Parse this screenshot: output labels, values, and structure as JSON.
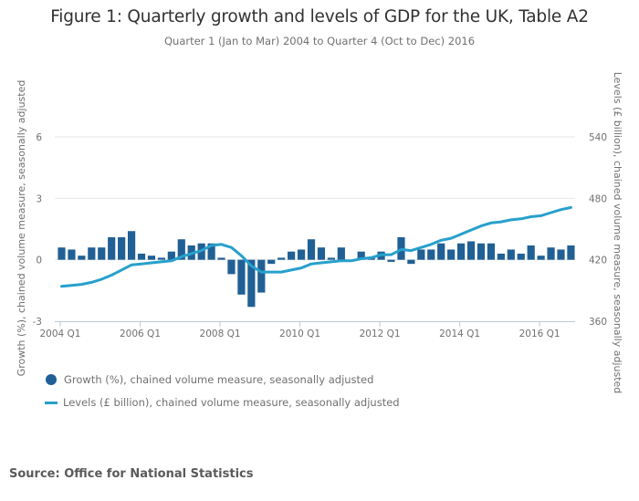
{
  "title": "Figure 1: Quarterly growth and levels of GDP for the UK, Table A2",
  "subtitle": "Quarter 1 (Jan to Mar) 2004 to Quarter 4 (Oct to Dec) 2016",
  "source": "Source: Office for National Statistics",
  "colors": {
    "bars": "#206095",
    "line": "#27a0cc",
    "grid": "#e5e6e7",
    "axis": "#bcc8d9"
  },
  "chart_data": {
    "type": "bar",
    "title": "Figure 1: Quarterly growth and levels of GDP for the UK, Table A2",
    "subtitle": "Quarter 1 (Jan to Mar) 2004 to Quarter 4 (Oct to Dec) 2016",
    "xlabel": "",
    "ylabel": "Growth (%), chained volume measure, seasonally adjusted",
    "y2label": "Levels (£ billion), chained volume measure, seasonally adjusted",
    "ylim": [
      -3,
      6
    ],
    "y2lim": [
      360,
      540
    ],
    "yticks": [
      "-3",
      "0",
      "3",
      "6"
    ],
    "y2ticks": [
      "360",
      "420",
      "480",
      "540"
    ],
    "xticks": [
      "2004 Q1",
      "2006 Q1",
      "2008 Q1",
      "2010 Q1",
      "2012 Q1",
      "2014 Q1",
      "2016 Q1"
    ],
    "grid": true,
    "legend_position": "bottom-left",
    "x": [
      "2004 Q1",
      "2004 Q2",
      "2004 Q3",
      "2004 Q4",
      "2005 Q1",
      "2005 Q2",
      "2005 Q3",
      "2005 Q4",
      "2006 Q1",
      "2006 Q2",
      "2006 Q3",
      "2006 Q4",
      "2007 Q1",
      "2007 Q2",
      "2007 Q3",
      "2007 Q4",
      "2008 Q1",
      "2008 Q2",
      "2008 Q3",
      "2008 Q4",
      "2009 Q1",
      "2009 Q2",
      "2009 Q3",
      "2009 Q4",
      "2010 Q1",
      "2010 Q2",
      "2010 Q3",
      "2010 Q4",
      "2011 Q1",
      "2011 Q2",
      "2011 Q3",
      "2011 Q4",
      "2012 Q1",
      "2012 Q2",
      "2012 Q3",
      "2012 Q4",
      "2013 Q1",
      "2013 Q2",
      "2013 Q3",
      "2013 Q4",
      "2014 Q1",
      "2014 Q2",
      "2014 Q3",
      "2014 Q4",
      "2015 Q1",
      "2015 Q2",
      "2015 Q3",
      "2015 Q4",
      "2016 Q1",
      "2016 Q2",
      "2016 Q3",
      "2016 Q4"
    ],
    "series": [
      {
        "name": "Growth (%), chained volume measure, seasonally adjusted",
        "type": "bar",
        "axis": "left",
        "values": [
          0.6,
          0.5,
          0.2,
          0.6,
          0.6,
          1.1,
          1.1,
          1.4,
          0.3,
          0.2,
          0.1,
          0.4,
          1.0,
          0.7,
          0.8,
          0.8,
          0.1,
          -0.7,
          -1.7,
          -2.3,
          -1.6,
          -0.2,
          0.1,
          0.4,
          0.5,
          1.0,
          0.6,
          0.1,
          0.6,
          0.0,
          0.4,
          0.1,
          0.4,
          -0.1,
          1.1,
          -0.2,
          0.5,
          0.5,
          0.8,
          0.5,
          0.8,
          0.9,
          0.8,
          0.8,
          0.3,
          0.5,
          0.3,
          0.7,
          0.2,
          0.6,
          0.5,
          0.7
        ]
      },
      {
        "name": "Levels (£ billion), chained volume measure, seasonally adjusted",
        "type": "line",
        "axis": "right",
        "values": [
          394,
          395,
          396,
          398,
          401,
          405,
          410,
          415,
          416,
          417,
          418,
          419,
          423,
          426,
          429,
          434,
          435,
          432,
          424,
          414,
          408,
          408,
          408,
          410,
          412,
          416,
          417,
          418,
          419,
          419,
          421,
          422,
          425,
          425,
          430,
          429,
          432,
          435,
          439,
          441,
          445,
          449,
          453,
          456,
          457,
          459,
          460,
          462,
          463,
          466,
          469,
          471
        ]
      }
    ]
  }
}
